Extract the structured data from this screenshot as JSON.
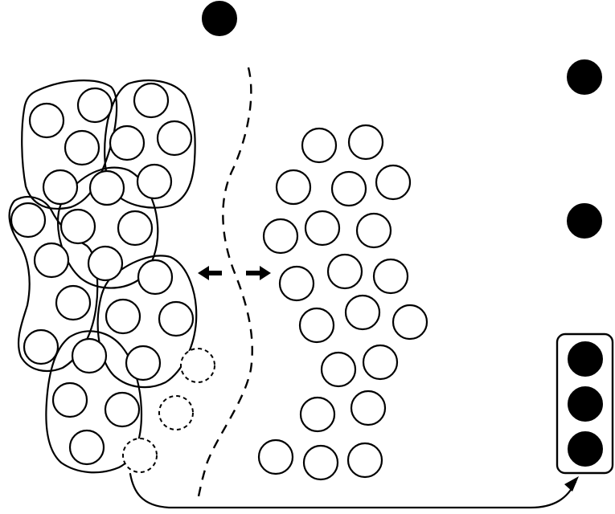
{
  "diagram": {
    "background": "#ffffff",
    "ink": "#000000",
    "grouped_clusters": 6,
    "dashed_vacancies": 3,
    "loose_circles": 21,
    "free_black_dots": 3,
    "boxed_black_dots": 3,
    "double_arrow": "bidirectional",
    "boundary": "dashed-wavy-line",
    "transfer_arrow": "curved-arrow-to-box"
  }
}
